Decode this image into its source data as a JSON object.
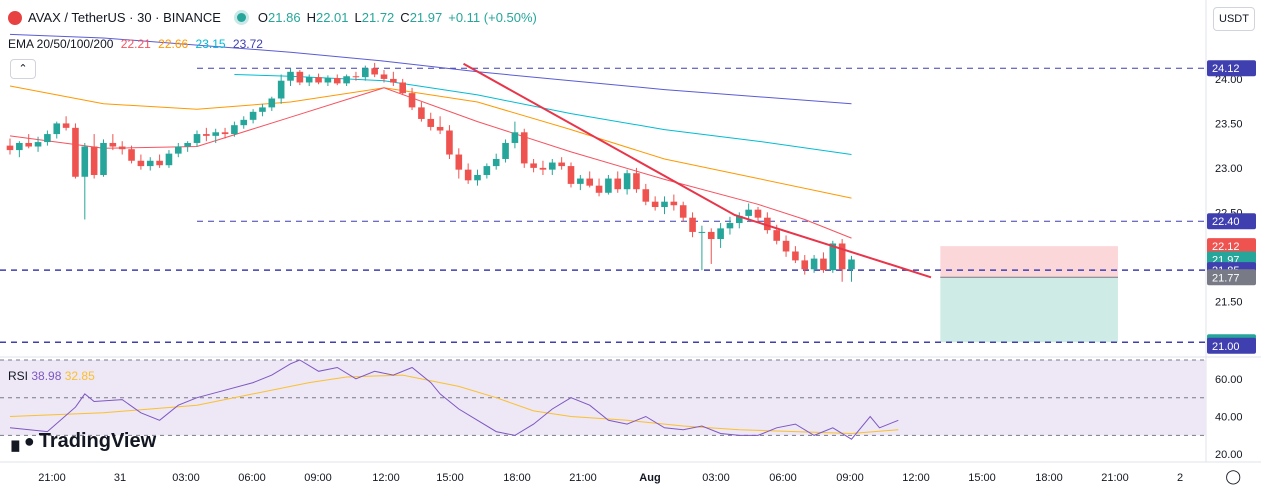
{
  "header": {
    "symbol": "AVAX / TetherUS · 30 · BINANCE",
    "o_label": "O",
    "o": "21.86",
    "h_label": "H",
    "h": "22.01",
    "l_label": "L",
    "l": "21.72",
    "c_label": "C",
    "c": "21.97",
    "change": "+0.11 (+0.50%)"
  },
  "ema_legend": {
    "label": "EMA 20/50/100/200",
    "v20": "22.21",
    "v50": "22.66",
    "v100": "23.15",
    "v200": "23.72"
  },
  "rsi_legend": {
    "label": "RSI",
    "rsi": "38.98",
    "ma": "32.85"
  },
  "currency_button": "USDT",
  "collapse_icon": "chevron-up-icon",
  "logo_text": "TradingView",
  "colors": {
    "up": "#26a69a",
    "down": "#ef5350",
    "ema20": "#f7525f",
    "ema50": "#ff9800",
    "ema100": "#00bcd4",
    "ema200": "#5b5bd6",
    "trend": "#e8354a",
    "hline": "#3f3fb0",
    "rsi": "#7e57c2",
    "rsi_ma": "#fbc02d",
    "rsi_band": "#ede7f6"
  },
  "chart_data": [
    {
      "type": "candlestick",
      "title": "AVAX / TetherUS · 30 · BINANCE",
      "x_ticks": [
        "21:00",
        "31",
        "03:00",
        "06:00",
        "09:00",
        "12:00",
        "15:00",
        "18:00",
        "21:00",
        "Aug",
        "03:00",
        "06:00",
        "09:00",
        "12:00",
        "15:00",
        "18:00",
        "21:00",
        "2"
      ],
      "y_ticks": [
        "24.00",
        "23.50",
        "23.00",
        "22.50",
        "21.50"
      ],
      "ylim": [
        20.93,
        24.55
      ],
      "candles": [
        [
          23.25,
          23.33,
          23.15,
          23.2
        ],
        [
          23.2,
          23.3,
          23.12,
          23.28
        ],
        [
          23.28,
          23.38,
          23.22,
          23.24
        ],
        [
          23.24,
          23.35,
          23.18,
          23.29
        ],
        [
          23.29,
          23.42,
          23.25,
          23.38
        ],
        [
          23.38,
          23.52,
          23.33,
          23.5
        ],
        [
          23.5,
          23.58,
          23.42,
          23.45
        ],
        [
          23.45,
          23.5,
          22.88,
          22.9
        ],
        [
          22.9,
          23.28,
          22.42,
          23.24
        ],
        [
          23.24,
          23.38,
          22.88,
          22.92
        ],
        [
          22.92,
          23.32,
          22.9,
          23.28
        ],
        [
          23.28,
          23.38,
          23.2,
          23.24
        ],
        [
          23.24,
          23.3,
          23.15,
          23.21
        ],
        [
          23.21,
          23.25,
          23.05,
          23.08
        ],
        [
          23.08,
          23.15,
          22.98,
          23.02
        ],
        [
          23.02,
          23.12,
          22.97,
          23.08
        ],
        [
          23.08,
          23.15,
          23.0,
          23.03
        ],
        [
          23.03,
          23.2,
          23.0,
          23.16
        ],
        [
          23.16,
          23.28,
          23.12,
          23.24
        ],
        [
          23.24,
          23.3,
          23.18,
          23.28
        ],
        [
          23.28,
          23.42,
          23.24,
          23.38
        ],
        [
          23.38,
          23.45,
          23.3,
          23.36
        ],
        [
          23.36,
          23.44,
          23.28,
          23.4
        ],
        [
          23.4,
          23.45,
          23.33,
          23.38
        ],
        [
          23.38,
          23.52,
          23.35,
          23.48
        ],
        [
          23.48,
          23.58,
          23.44,
          23.54
        ],
        [
          23.54,
          23.66,
          23.5,
          23.63
        ],
        [
          23.63,
          23.72,
          23.58,
          23.68
        ],
        [
          23.68,
          23.8,
          23.64,
          23.78
        ],
        [
          23.78,
          24.05,
          23.72,
          23.98
        ],
        [
          23.98,
          24.12,
          23.92,
          24.08
        ],
        [
          24.08,
          24.1,
          23.93,
          23.96
        ],
        [
          23.96,
          24.05,
          23.92,
          24.02
        ],
        [
          24.02,
          24.06,
          23.94,
          23.96
        ],
        [
          23.96,
          24.04,
          23.92,
          24.01
        ],
        [
          24.01,
          24.05,
          23.93,
          23.95
        ],
        [
          23.95,
          24.05,
          23.92,
          24.03
        ],
        [
          24.03,
          24.08,
          23.98,
          24.02
        ],
        [
          24.02,
          24.15,
          23.98,
          24.12
        ],
        [
          24.12,
          24.18,
          24.02,
          24.05
        ],
        [
          24.05,
          24.1,
          23.96,
          24.0
        ],
        [
          24.0,
          24.08,
          23.92,
          23.96
        ],
        [
          23.96,
          24.0,
          23.82,
          23.84
        ],
        [
          23.84,
          23.9,
          23.65,
          23.68
        ],
        [
          23.68,
          23.74,
          23.52,
          23.55
        ],
        [
          23.55,
          23.62,
          23.42,
          23.46
        ],
        [
          23.46,
          23.58,
          23.38,
          23.42
        ],
        [
          23.42,
          23.48,
          23.1,
          23.15
        ],
        [
          23.15,
          23.22,
          22.88,
          22.98
        ],
        [
          22.98,
          23.05,
          22.82,
          22.86
        ],
        [
          22.86,
          22.98,
          22.8,
          22.92
        ],
        [
          22.92,
          23.05,
          22.88,
          23.02
        ],
        [
          23.02,
          23.16,
          22.98,
          23.1
        ],
        [
          23.1,
          23.32,
          23.06,
          23.28
        ],
        [
          23.28,
          23.52,
          23.22,
          23.4
        ],
        [
          23.4,
          23.44,
          23.0,
          23.05
        ],
        [
          23.05,
          23.1,
          22.95,
          23.0
        ],
        [
          23.0,
          23.08,
          22.92,
          22.98
        ],
        [
          22.98,
          23.1,
          22.92,
          23.06
        ],
        [
          23.06,
          23.12,
          22.98,
          23.02
        ],
        [
          23.02,
          23.06,
          22.78,
          22.82
        ],
        [
          22.82,
          22.92,
          22.75,
          22.88
        ],
        [
          22.88,
          22.96,
          22.78,
          22.8
        ],
        [
          22.8,
          22.88,
          22.68,
          22.72
        ],
        [
          22.72,
          22.92,
          22.7,
          22.88
        ],
        [
          22.88,
          22.96,
          22.72,
          22.76
        ],
        [
          22.76,
          22.98,
          22.7,
          22.94
        ],
        [
          22.94,
          23.0,
          22.72,
          22.76
        ],
        [
          22.76,
          22.82,
          22.58,
          22.62
        ],
        [
          22.62,
          22.68,
          22.52,
          22.56
        ],
        [
          22.56,
          22.68,
          22.48,
          22.62
        ],
        [
          22.62,
          22.7,
          22.52,
          22.58
        ],
        [
          22.58,
          22.62,
          22.4,
          22.44
        ],
        [
          22.44,
          22.5,
          22.22,
          22.28
        ],
        [
          22.28,
          22.35,
          21.85,
          22.28
        ],
        [
          22.28,
          22.32,
          21.92,
          22.2
        ],
        [
          22.2,
          22.38,
          22.1,
          22.32
        ],
        [
          22.32,
          22.45,
          22.25,
          22.38
        ],
        [
          22.38,
          22.5,
          22.32,
          22.46
        ],
        [
          22.46,
          22.6,
          22.4,
          22.53
        ],
        [
          22.53,
          22.56,
          22.38,
          22.44
        ],
        [
          22.44,
          22.5,
          22.26,
          22.3
        ],
        [
          22.3,
          22.36,
          22.14,
          22.18
        ],
        [
          22.18,
          22.24,
          22.0,
          22.06
        ],
        [
          22.06,
          22.12,
          21.93,
          21.96
        ],
        [
          21.96,
          22.02,
          21.8,
          21.86
        ],
        [
          21.86,
          22.02,
          21.82,
          21.98
        ],
        [
          21.98,
          22.05,
          21.82,
          21.85
        ],
        [
          21.85,
          22.18,
          21.82,
          22.15
        ],
        [
          22.15,
          22.2,
          21.72,
          21.86
        ],
        [
          21.86,
          22.01,
          21.72,
          21.97
        ]
      ],
      "ema20": [
        [
          0,
          23.36
        ],
        [
          10,
          23.22
        ],
        [
          20,
          23.24
        ],
        [
          30,
          23.57
        ],
        [
          40,
          23.9
        ],
        [
          50,
          23.52
        ],
        [
          60,
          23.18
        ],
        [
          70,
          22.87
        ],
        [
          80,
          22.59
        ],
        [
          85,
          22.42
        ],
        [
          90,
          22.21
        ]
      ],
      "ema50": [
        [
          0,
          23.92
        ],
        [
          10,
          23.72
        ],
        [
          20,
          23.66
        ],
        [
          30,
          23.74
        ],
        [
          40,
          23.9
        ],
        [
          50,
          23.74
        ],
        [
          60,
          23.43
        ],
        [
          70,
          23.1
        ],
        [
          80,
          22.88
        ],
        [
          90,
          22.66
        ]
      ],
      "ema100": [
        [
          24,
          24.05
        ],
        [
          30,
          24.03
        ],
        [
          40,
          23.98
        ],
        [
          50,
          23.82
        ],
        [
          60,
          23.61
        ],
        [
          70,
          23.43
        ],
        [
          80,
          23.3
        ],
        [
          90,
          23.15
        ]
      ],
      "ema200": [
        [
          0,
          24.5
        ],
        [
          10,
          24.46
        ],
        [
          20,
          24.38
        ],
        [
          30,
          24.3
        ],
        [
          40,
          24.2
        ],
        [
          50,
          24.08
        ],
        [
          60,
          23.98
        ],
        [
          70,
          23.88
        ],
        [
          80,
          23.8
        ],
        [
          90,
          23.72
        ]
      ],
      "trendline": [
        [
          48.5,
          24.17
        ],
        [
          77.5,
          22.47
        ],
        [
          98.5,
          21.77
        ]
      ],
      "hlines": [
        {
          "y": 24.12,
          "dash": true,
          "from": "right"
        },
        {
          "y": 22.4,
          "dash": true,
          "from": "right"
        },
        {
          "y": 21.85,
          "dash": true
        },
        {
          "y": 21.04,
          "dash": true
        }
      ],
      "position": {
        "entry": 21.77,
        "stop": 22.12,
        "target": 21.04
      },
      "price_labels": [
        {
          "value": "24.12",
          "bg": "#3f3fb0",
          "fg": "#ffffff",
          "y": 24.12
        },
        {
          "value": "22.40",
          "bg": "#3f3fb0",
          "fg": "#ffffff",
          "y": 22.4
        },
        {
          "value": "22.12",
          "bg": "#ef5350",
          "fg": "#ffffff",
          "y": 22.12
        },
        {
          "value": "21.97",
          "bg": "#26a69a",
          "fg": "#ffffff",
          "y": 21.97
        },
        {
          "value": "21.85",
          "bg": "#3f3fb0",
          "fg": "#ffffff",
          "y": 21.85
        },
        {
          "value": "21.77",
          "bg": "#787b86",
          "fg": "#ffffff",
          "y": 21.77
        },
        {
          "value": "21.04",
          "bg": "#26a69a",
          "fg": "#ffffff",
          "y": 21.04
        },
        {
          "value": "21.00",
          "bg": "#3f3fb0",
          "fg": "#ffffff",
          "y": 21.0
        }
      ]
    },
    {
      "type": "line",
      "title": "RSI",
      "y_ticks": [
        "60.00",
        "40.00",
        "20.00"
      ],
      "ylim": [
        18,
        70
      ],
      "band": [
        30,
        70
      ],
      "levels": [
        50
      ],
      "series": [
        {
          "values": [
            [
              0,
              34
            ],
            [
              4,
              32
            ],
            [
              7,
              45
            ],
            [
              8,
              52
            ],
            [
              9,
              48
            ],
            [
              12,
              49
            ],
            [
              14,
              42
            ],
            [
              16,
              38
            ],
            [
              18,
              46
            ],
            [
              20,
              50
            ],
            [
              23,
              54
            ],
            [
              26,
              58
            ],
            [
              28,
              62
            ],
            [
              30,
              68
            ],
            [
              31,
              70
            ],
            [
              33,
              64
            ],
            [
              35,
              66
            ],
            [
              37,
              60
            ],
            [
              39,
              64
            ],
            [
              41,
              62
            ],
            [
              43,
              66
            ],
            [
              45,
              58
            ],
            [
              46,
              52
            ],
            [
              48,
              44
            ],
            [
              50,
              38
            ],
            [
              52,
              32
            ],
            [
              54,
              30
            ],
            [
              56,
              36
            ],
            [
              58,
              44
            ],
            [
              60,
              50
            ],
            [
              62,
              46
            ],
            [
              64,
              38
            ],
            [
              66,
              36
            ],
            [
              68,
              40
            ],
            [
              70,
              34
            ],
            [
              72,
              33
            ],
            [
              74,
              35
            ],
            [
              76,
              31
            ],
            [
              78,
              30
            ],
            [
              80,
              30
            ],
            [
              82,
              34
            ],
            [
              84,
              36
            ],
            [
              86,
              30
            ],
            [
              88,
              34
            ],
            [
              90,
              28
            ],
            [
              92,
              40
            ],
            [
              93,
              34
            ],
            [
              95,
              38
            ]
          ]
        },
        {
          "values": [
            [
              0,
              40
            ],
            [
              10,
              42
            ],
            [
              20,
              46
            ],
            [
              26,
              52
            ],
            [
              32,
              58
            ],
            [
              36,
              61
            ],
            [
              42,
              62
            ],
            [
              48,
              56
            ],
            [
              52,
              50
            ],
            [
              56,
              43
            ],
            [
              60,
              40
            ],
            [
              66,
              38
            ],
            [
              72,
              35
            ],
            [
              78,
              33
            ],
            [
              84,
              32
            ],
            [
              90,
              31
            ],
            [
              95,
              33
            ]
          ]
        }
      ]
    }
  ]
}
